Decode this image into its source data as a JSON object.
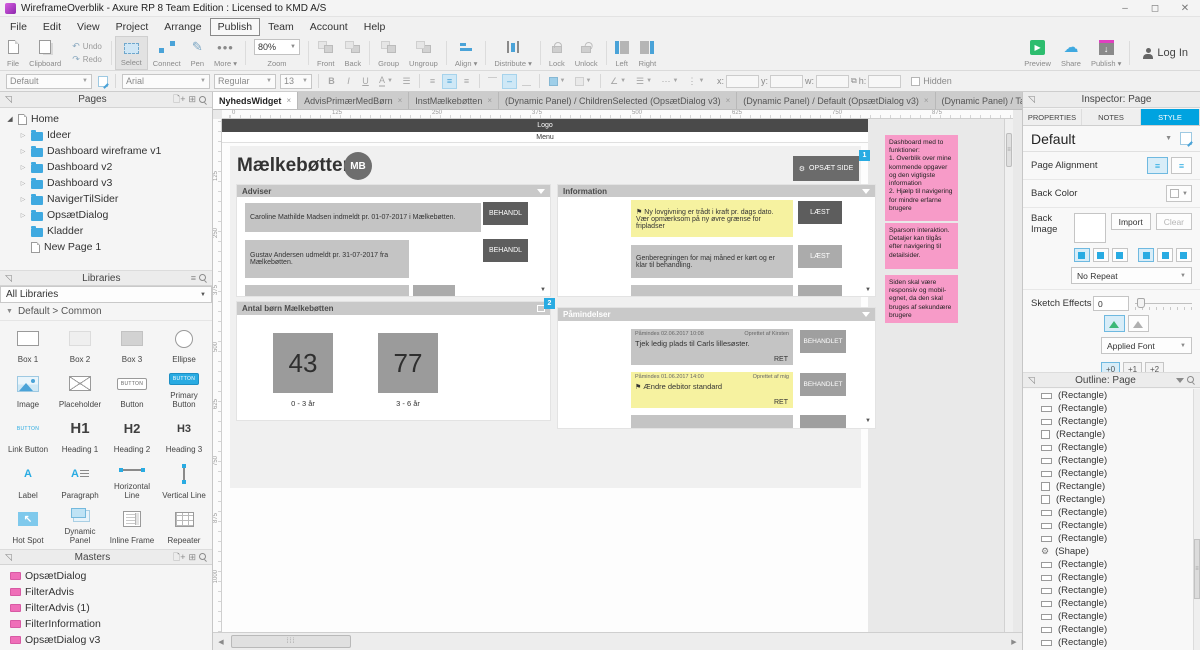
{
  "window": {
    "title": "WireframeOverblik - Axure RP 8 Team Edition : Licensed to KMD A/S"
  },
  "menu": {
    "items": [
      "File",
      "Edit",
      "View",
      "Project",
      "Arrange",
      "Publish",
      "Team",
      "Account",
      "Help"
    ],
    "active": "Publish"
  },
  "toolbar": {
    "file": "File",
    "clipboard": "Clipboard",
    "undo": "Undo",
    "redo": "Redo",
    "select": "Select",
    "connect": "Connect",
    "pen": "Pen",
    "more": "More ▾",
    "zoom_value": "80%",
    "zoom": "Zoom",
    "front": "Front",
    "back": "Back",
    "group": "Group",
    "ungroup": "Ungroup",
    "align": "Align ▾",
    "distribute": "Distribute ▾",
    "lock": "Lock",
    "unlock": "Unlock",
    "left": "Left",
    "right": "Right",
    "preview": "Preview",
    "share": "Share",
    "publish": "Publish ▾",
    "login": "Log In"
  },
  "formatbar": {
    "style_preset": "Default",
    "font": "Arial",
    "font_weight": "Regular",
    "font_size": "13",
    "bold": "B",
    "italic": "I",
    "underline": "U",
    "font_color": "A",
    "x_label": "x:",
    "y_label": "y:",
    "w_label": "w:",
    "h_label": "h:",
    "hidden": "Hidden"
  },
  "pages": {
    "title": "Pages",
    "items": [
      {
        "label": "Home",
        "type": "page",
        "depth": 0,
        "expanded": true
      },
      {
        "label": "Ideer",
        "type": "folder",
        "depth": 1,
        "arrow": true
      },
      {
        "label": "Dashboard wireframe v1",
        "type": "folder",
        "depth": 1,
        "arrow": true
      },
      {
        "label": "Dashboard v2",
        "type": "folder",
        "depth": 1,
        "arrow": true
      },
      {
        "label": "Dashboard v3",
        "type": "folder",
        "depth": 1,
        "arrow": true
      },
      {
        "label": "NavigerTilSider",
        "type": "folder",
        "depth": 1,
        "arrow": true
      },
      {
        "label": "OpsætDialog",
        "type": "folder",
        "depth": 1,
        "arrow": true
      },
      {
        "label": "Kladder",
        "type": "folder",
        "depth": 1,
        "arrow": false
      },
      {
        "label": "New Page 1",
        "type": "page",
        "depth": 1,
        "arrow": false
      }
    ]
  },
  "libraries": {
    "title": "Libraries",
    "dropdown": "All Libraries",
    "section": "Default > Common",
    "widgets": [
      {
        "label": "Box 1",
        "icon": "box1"
      },
      {
        "label": "Box 2",
        "icon": "box2"
      },
      {
        "label": "Box 3",
        "icon": "box3"
      },
      {
        "label": "Ellipse",
        "icon": "ellipse"
      },
      {
        "label": "Image",
        "icon": "image"
      },
      {
        "label": "Placeholder",
        "icon": "placeholder"
      },
      {
        "label": "Button",
        "icon": "button"
      },
      {
        "label": "Primary Button",
        "icon": "primary"
      },
      {
        "label": "Link Button",
        "icon": "link"
      },
      {
        "label": "Heading 1",
        "icon": "h1"
      },
      {
        "label": "Heading 2",
        "icon": "h2"
      },
      {
        "label": "Heading 3",
        "icon": "h3"
      },
      {
        "label": "Label",
        "icon": "label"
      },
      {
        "label": "Paragraph",
        "icon": "para"
      },
      {
        "label": "Horizontal Line",
        "icon": "hline"
      },
      {
        "label": "Vertical Line",
        "icon": "vline"
      },
      {
        "label": "Hot Spot",
        "icon": "hotspot"
      },
      {
        "label": "Dynamic Panel",
        "icon": "dpanel"
      },
      {
        "label": "Inline Frame",
        "icon": "iframe"
      },
      {
        "label": "Repeater",
        "icon": "repeater"
      }
    ]
  },
  "masters": {
    "title": "Masters",
    "items": [
      "OpsætDialog",
      "FilterAdvis",
      "FilterAdvis (1)",
      "FilterInformation",
      "OpsætDialog v3"
    ]
  },
  "tabs": {
    "items": [
      "NyhedsWidget",
      "AdvisPrimærMedBørn",
      "InstMælkebøtten",
      "(Dynamic Panel) / ChildrenSelected (OpsætDialog v3)",
      "(Dynamic Panel) / Default (OpsætDialog v3)",
      "(Dynamic Panel) / TaskSelected (OpsætDialog v3)",
      "OpsætDialog v3"
    ],
    "active_index": 0
  },
  "rulers": {
    "horizontal": [
      "0",
      "125",
      "250",
      "375",
      "500",
      "625",
      "750",
      "875",
      "1000",
      "1125",
      "1250",
      "1375",
      "1500"
    ],
    "vertical": [
      "125",
      "250",
      "375",
      "500",
      "625",
      "750",
      "875",
      "1000"
    ]
  },
  "wireframe": {
    "logo": "Logo",
    "menu": "Menu",
    "page_title": "Mælkebøtten",
    "avatar": "MB",
    "setup_button": "OPSÆT SIDE",
    "setup_badge": "1",
    "adviser": {
      "title": "Adviser",
      "rows": [
        {
          "text": "Caroline Mathilde Madsen indmeldt pr. 01-07-2017 i Mælkebøtten.",
          "action": "BEHANDL"
        },
        {
          "text": "Gustav Andersen udmeldt pr. 31-07-2017 fra Mælkebøtten.",
          "action": "BEHANDL"
        }
      ]
    },
    "information": {
      "title": "Information",
      "rows": [
        {
          "text": "Ny lovgivning er trådt i kraft pr. dags dato. Vær opmærksom på ny øvre grænse for fripladser",
          "action": "LÆST",
          "flag": "⚑"
        },
        {
          "text": "Genberegningen for maj måned er kørt og er klar til behandling.",
          "action": "LÆST"
        }
      ]
    },
    "counts": {
      "title": "Antal børn Mælkebøtten",
      "badge": "2",
      "items": [
        {
          "value": "43",
          "label": "0 - 3 år"
        },
        {
          "value": "77",
          "label": "3 - 6 år"
        }
      ]
    },
    "reminders": {
      "title": "Påmindelser",
      "rows": [
        {
          "meta_left": "Påmindes 02.06.2017 10:08",
          "meta_right": "Oprettet af Kirsten",
          "text": "Tjek ledig plads til Carls lillesøster.",
          "link": "RET",
          "action": "BEHANDLET"
        },
        {
          "meta_left": "Påmindes 01.06.2017 14:00",
          "meta_right": "Oprettet af mig",
          "text": "Ændre debitor standard",
          "link": "RET",
          "action": "BEHANDLET",
          "flag": "⚑"
        }
      ]
    },
    "notes": [
      "Dashboard med to funktioner:\n1. Overblik over mine kommende opgaver og den vigtigste information\n2. Hjælp til navigering for mindre erfarne brugere",
      "Sparsom interaktion. Detaljer kan tilgås efter navigering til detailsider.",
      "Siden skal være responsiv og mobil-egnet, da den skal bruges af sekundære brugere"
    ]
  },
  "inspector": {
    "title": "Inspector: Page",
    "tabs": [
      "PROPERTIES",
      "NOTES",
      "STYLE"
    ],
    "active_tab": "STYLE",
    "style_preset": "Default",
    "page_alignment": "Page Alignment",
    "back_color": "Back Color",
    "back_image": "Back Image",
    "import": "Import",
    "clear": "Clear",
    "repeat": "No Repeat",
    "sketch_effects": "Sketch Effects",
    "sketch_value": "0",
    "applied_font": "Applied Font",
    "plus_buttons": [
      "+0",
      "+1",
      "+2"
    ]
  },
  "outline": {
    "title": "Outline: Page",
    "items": [
      {
        "label": "(Rectangle)",
        "icon": "rect"
      },
      {
        "label": "(Rectangle)",
        "icon": "rect"
      },
      {
        "label": "(Rectangle)",
        "icon": "rect"
      },
      {
        "label": "(Rectangle)",
        "icon": "tall"
      },
      {
        "label": "(Rectangle)",
        "icon": "rect"
      },
      {
        "label": "(Rectangle)",
        "icon": "rect"
      },
      {
        "label": "(Rectangle)",
        "icon": "rect"
      },
      {
        "label": "(Rectangle)",
        "icon": "tall"
      },
      {
        "label": "(Rectangle)",
        "icon": "tall"
      },
      {
        "label": "(Rectangle)",
        "icon": "rect"
      },
      {
        "label": "(Rectangle)",
        "icon": "rect"
      },
      {
        "label": "(Rectangle)",
        "icon": "rect"
      },
      {
        "label": "(Shape)",
        "icon": "shape"
      },
      {
        "label": "(Rectangle)",
        "icon": "rect"
      },
      {
        "label": "(Rectangle)",
        "icon": "rect"
      },
      {
        "label": "(Rectangle)",
        "icon": "rect"
      },
      {
        "label": "(Rectangle)",
        "icon": "rect"
      },
      {
        "label": "(Rectangle)",
        "icon": "rect"
      },
      {
        "label": "(Rectangle)",
        "icon": "rect"
      },
      {
        "label": "(Rectangle)",
        "icon": "rect"
      },
      {
        "label": "(Rectangle)",
        "icon": "rect"
      }
    ]
  },
  "colors": {
    "accent": "#29abe2",
    "note_pink": "#f79bc8",
    "highlight_yellow": "#f6f2a0",
    "dark_button": "#5d5d5d"
  }
}
